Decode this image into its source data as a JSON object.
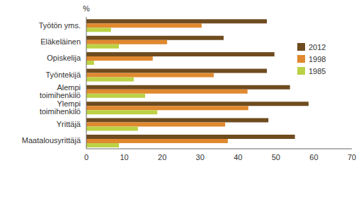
{
  "chart_data": {
    "type": "bar",
    "orientation": "horizontal",
    "xlabel": "%",
    "categories": [
      "Työtön yms.",
      "Eläkeläinen",
      "Opiskelija",
      "Työntekijä",
      "Alempi toimihenkilö",
      "Ylempi toimihenkilö",
      "Yrittäjä",
      "Maatalousyrittäjä"
    ],
    "series": [
      {
        "name": "2012",
        "color": "#6f4c1f",
        "values": [
          47.6,
          36.2,
          49.6,
          47.6,
          53.7,
          58.6,
          48,
          55
        ]
      },
      {
        "name": "1998",
        "color": "#e0892f",
        "values": [
          30.4,
          21.3,
          17.5,
          33.6,
          42.5,
          42.7,
          36.6,
          37.3
        ]
      },
      {
        "name": "1985",
        "color": "#bcd246",
        "values": [
          6.5,
          8.6,
          2,
          12.5,
          15.5,
          18.7,
          13.6,
          8.6
        ]
      }
    ],
    "xlim": [
      0,
      70
    ],
    "xticks": [
      0,
      10,
      20,
      30,
      40,
      50,
      60,
      70
    ],
    "grid": false,
    "legend": "upper right"
  }
}
